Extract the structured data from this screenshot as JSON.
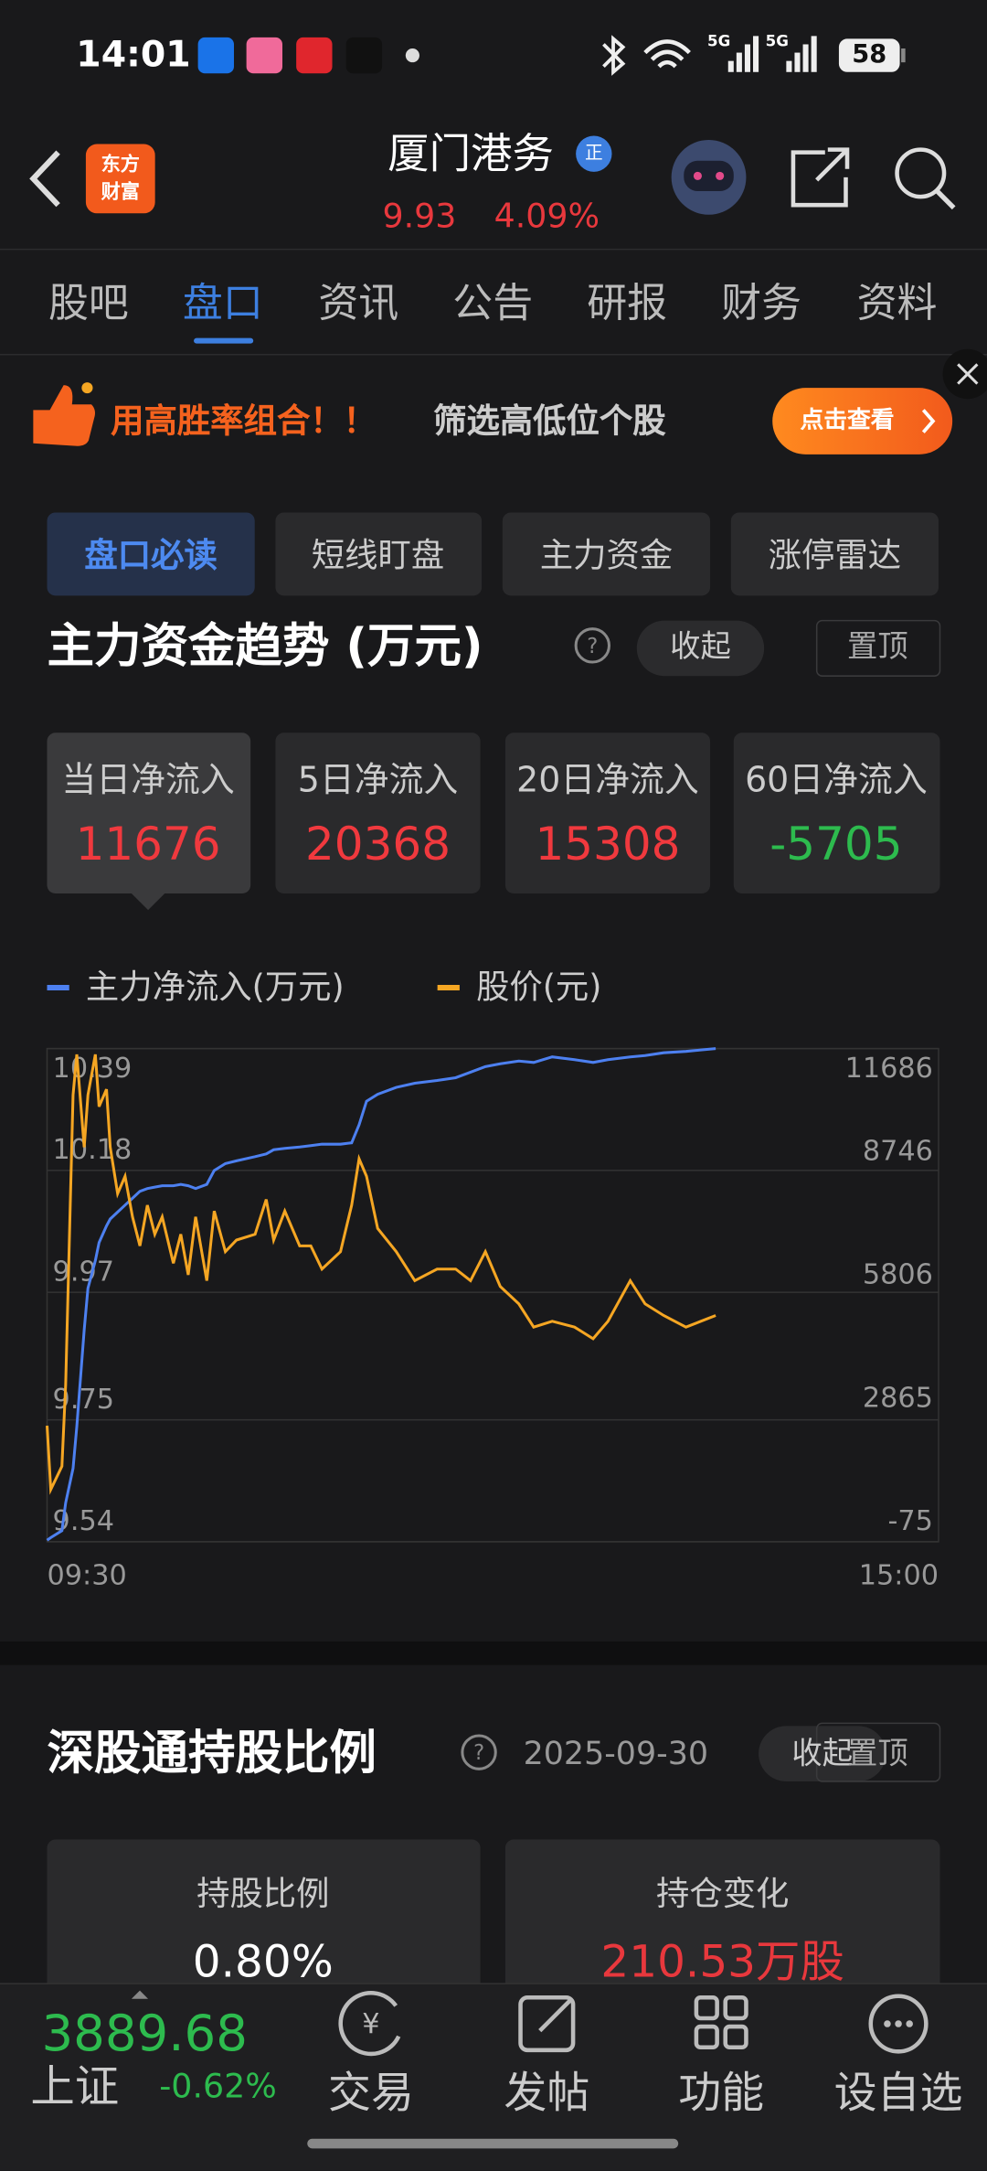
{
  "status_bar": {
    "time": "14:01",
    "signal": [
      "5G",
      "5G"
    ],
    "battery": "58"
  },
  "header": {
    "logo": [
      "东方",
      "财富"
    ],
    "title": "厦门港务",
    "badge": "正",
    "price": "9.93",
    "change": "4.09%"
  },
  "tabs": [
    "股吧",
    "盘口",
    "资讯",
    "公告",
    "研报",
    "财务",
    "资料"
  ],
  "banner": {
    "text1": "用高胜率组合！！",
    "text2": "筛选高低位个股",
    "button": "点击查看"
  },
  "subtabs": [
    "盘口必读",
    "短线盯盘",
    "主力资金",
    "涨停雷达"
  ],
  "fund_section": {
    "title": "主力资金趋势 (万元)",
    "collapse": "收起",
    "pin": "置顶",
    "cards": [
      {
        "label": "当日净流入",
        "value": 11676
      },
      {
        "label": "5日净流入",
        "value": 20368
      },
      {
        "label": "20日净流入",
        "value": 15308
      },
      {
        "label": "60日净流入",
        "value": -5705
      }
    ]
  },
  "chart_data": {
    "type": "line",
    "x": [
      0,
      1,
      4,
      5,
      7,
      8,
      10,
      11,
      13,
      14,
      16,
      17,
      19,
      21,
      23,
      25,
      27,
      29,
      31,
      34,
      36,
      38,
      40,
      43,
      45,
      48,
      51,
      56,
      59,
      61,
      64,
      68,
      71,
      74,
      79,
      82,
      84,
      86,
      89,
      94,
      99,
      105,
      110,
      114,
      118,
      122,
      127,
      131,
      136,
      142,
      147,
      151,
      157,
      161,
      166,
      172,
      176,
      180
    ],
    "xlim": [
      0,
      240
    ],
    "xticks": [
      {
        "value": 0,
        "label": "09:30"
      },
      {
        "value": 240,
        "label": "15:00"
      }
    ],
    "ylim": [
      9.54,
      10.39
    ],
    "yticks": [
      9.54,
      9.75,
      9.97,
      10.18,
      10.39
    ],
    "y2lim": [
      -75,
      11686
    ],
    "y2ticks": [
      -75,
      2865,
      5806,
      8746,
      11686
    ],
    "grid": true,
    "series": [
      {
        "name": "主力净流入(万元)",
        "color": "#4d80f0",
        "axis": "y2",
        "values": [
          -40,
          24,
          189,
          850,
          1676,
          2667,
          4979,
          5970,
          6631,
          7061,
          7457,
          7622,
          7788,
          7953,
          8118,
          8283,
          8349,
          8382,
          8415,
          8415,
          8448,
          8415,
          8349,
          8448,
          8779,
          8944,
          9010,
          9109,
          9175,
          9274,
          9307,
          9340,
          9373,
          9406,
          9406,
          9439,
          9869,
          10431,
          10596,
          10761,
          10860,
          10926,
          10992,
          11124,
          11257,
          11323,
          11389,
          11356,
          11488,
          11422,
          11356,
          11422,
          11488,
          11521,
          11587,
          11620,
          11653,
          11686
        ]
      },
      {
        "name": "股价(元)",
        "color": "#f5a623",
        "values": [
          9.74,
          9.63,
          9.67,
          9.81,
          10.31,
          10.38,
          10.22,
          10.31,
          10.38,
          10.29,
          10.32,
          10.22,
          10.14,
          10.17,
          10.1,
          10.05,
          10.12,
          10.07,
          10.1,
          10.02,
          10.07,
          10.0,
          10.1,
          9.99,
          10.11,
          10.04,
          10.06,
          10.07,
          10.13,
          10.06,
          10.11,
          10.05,
          10.05,
          10.01,
          10.04,
          10.12,
          10.2,
          10.17,
          10.08,
          10.04,
          9.99,
          10.01,
          10.01,
          9.99,
          10.04,
          9.98,
          9.95,
          9.91,
          9.92,
          9.91,
          9.89,
          9.92,
          9.99,
          9.95,
          9.93,
          9.91,
          9.92,
          9.93
        ]
      }
    ]
  },
  "hk_section": {
    "title": "深股通持股比例",
    "date": "2025-09-30",
    "collapse": "收起",
    "pin": "置顶",
    "cards": [
      {
        "label": "持股比例",
        "value": "0.80%",
        "color": "#ffffff"
      },
      {
        "label": "持仓变化",
        "value": "210.53万股",
        "color": "#e8383d"
      }
    ]
  },
  "bottom_bar": {
    "index_value": "3889.68",
    "index_name": "上证",
    "index_change": "-0.62%",
    "items": [
      "交易",
      "发帖",
      "功能",
      "设自选"
    ]
  }
}
